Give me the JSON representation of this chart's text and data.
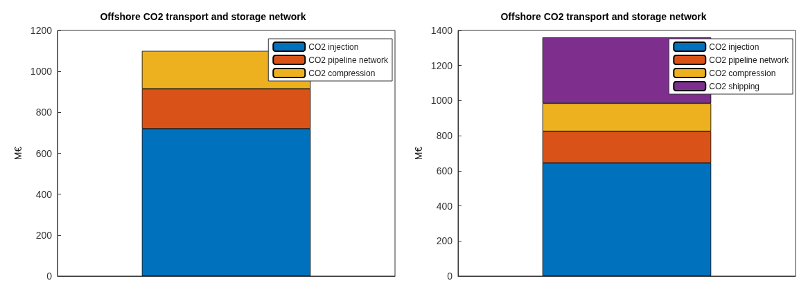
{
  "chart_data": [
    {
      "type": "bar",
      "stacked": true,
      "title": "Offshore CO2 transport and storage network",
      "ylabel": "M€",
      "categories": [
        null
      ],
      "ylim": [
        0,
        1200
      ],
      "yticks": [
        0,
        200,
        400,
        600,
        800,
        1000,
        1200
      ],
      "legend": "top right",
      "grid": false,
      "series": [
        {
          "name": "CO2 injection",
          "color": "#0072bd",
          "values": [
            720
          ]
        },
        {
          "name": "CO2 pipeline network",
          "color": "#d95319",
          "values": [
            195
          ]
        },
        {
          "name": "CO2 compression",
          "color": "#edb120",
          "values": [
            185
          ]
        }
      ]
    },
    {
      "type": "bar",
      "stacked": true,
      "title": "Offshore CO2 transport and storage network",
      "ylabel": "M€",
      "categories": [
        null
      ],
      "ylim": [
        0,
        1400
      ],
      "yticks": [
        0,
        200,
        400,
        600,
        800,
        1000,
        1200,
        1400
      ],
      "legend": "top right",
      "grid": false,
      "series": [
        {
          "name": "CO2 injection",
          "color": "#0072bd",
          "values": [
            645
          ]
        },
        {
          "name": "CO2 pipeline network",
          "color": "#d95319",
          "values": [
            180
          ]
        },
        {
          "name": "CO2 compression",
          "color": "#edb120",
          "values": [
            160
          ]
        },
        {
          "name": "CO2 shipping",
          "color": "#7e2f8e",
          "values": [
            375
          ]
        }
      ]
    }
  ]
}
